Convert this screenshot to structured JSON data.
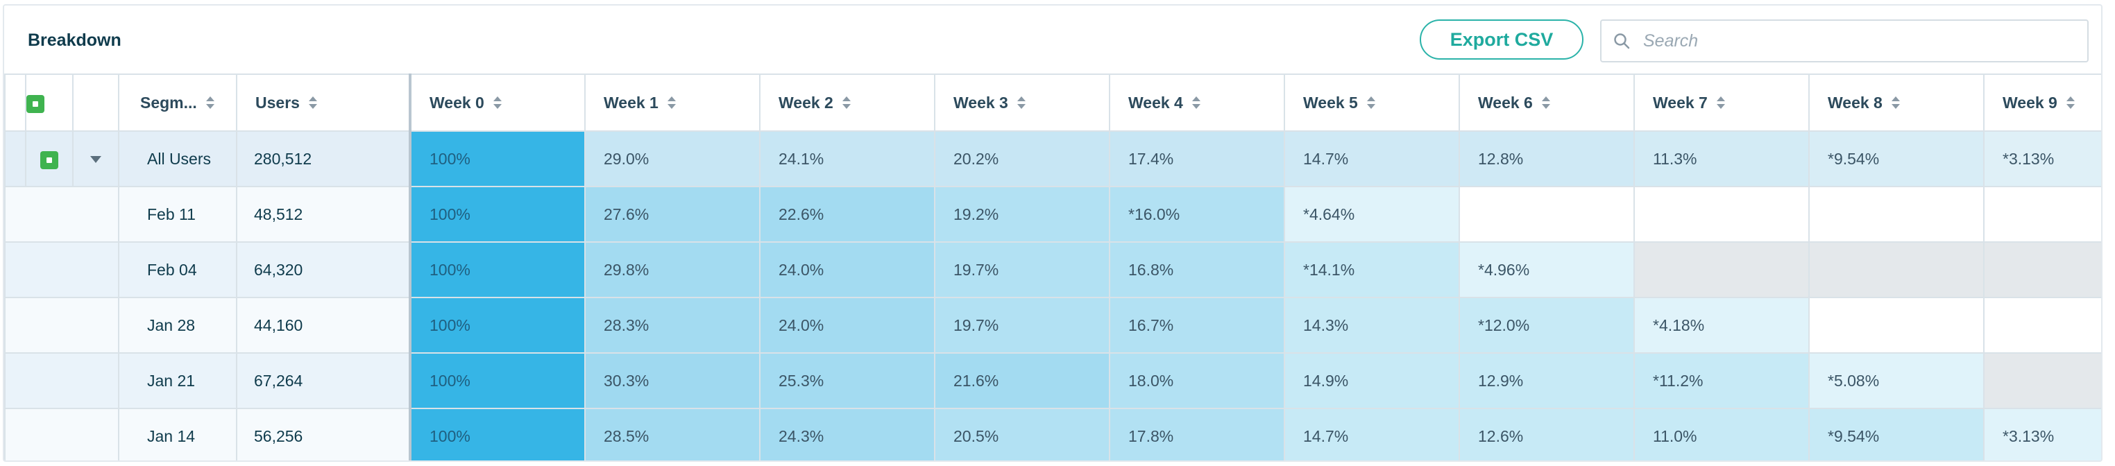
{
  "header": {
    "title": "Breakdown",
    "export_label": "Export CSV",
    "search_placeholder": "Search"
  },
  "columns": {
    "segment": "Segm...",
    "users": "Users",
    "weeks": [
      "Week 0",
      "Week 1",
      "Week 2",
      "Week 3",
      "Week 4",
      "Week 5",
      "Week 6",
      "Week 7",
      "Week 8",
      "Week 9"
    ]
  },
  "rows": [
    {
      "segment": "All Users",
      "users": "280,512",
      "cells": [
        "100%",
        "29.0%",
        "24.1%",
        "20.2%",
        "17.4%",
        "14.7%",
        "12.8%",
        "11.3%",
        "*9.54%",
        "*3.13%"
      ]
    },
    {
      "segment": "Feb 11",
      "users": "48,512",
      "cells": [
        "100%",
        "27.6%",
        "22.6%",
        "19.2%",
        "*16.0%",
        "*4.64%",
        "",
        "",
        "",
        ""
      ]
    },
    {
      "segment": "Feb 04",
      "users": "64,320",
      "cells": [
        "100%",
        "29.8%",
        "24.0%",
        "19.7%",
        "16.8%",
        "*14.1%",
        "*4.96%",
        "",
        "",
        ""
      ]
    },
    {
      "segment": "Jan 28",
      "users": "44,160",
      "cells": [
        "100%",
        "28.3%",
        "24.0%",
        "19.7%",
        "16.7%",
        "14.3%",
        "*12.0%",
        "*4.18%",
        "",
        ""
      ]
    },
    {
      "segment": "Jan 21",
      "users": "67,264",
      "cells": [
        "100%",
        "30.3%",
        "25.3%",
        "21.6%",
        "18.0%",
        "14.9%",
        "12.9%",
        "*11.2%",
        "*5.08%",
        ""
      ]
    },
    {
      "segment": "Jan 14",
      "users": "56,256",
      "cells": [
        "100%",
        "28.5%",
        "24.3%",
        "20.5%",
        "17.8%",
        "14.7%",
        "12.6%",
        "11.0%",
        "*9.54%",
        "*3.13%"
      ]
    }
  ],
  "icons": {
    "search": "search-icon",
    "sort": "sort-icon",
    "checkbox": "checkbox-icon",
    "expand": "caret-down-icon"
  },
  "colors": {
    "accent": "#2bb3a9",
    "week0": "#36b5e6",
    "checkbox": "#3fb34f"
  }
}
